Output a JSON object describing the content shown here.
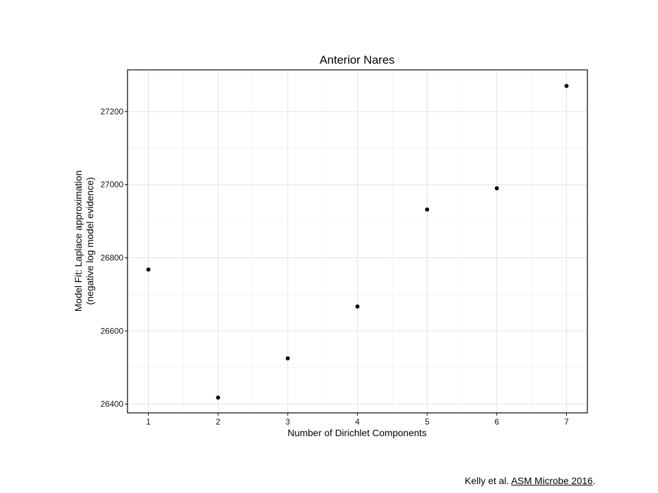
{
  "chart_data": {
    "type": "scatter",
    "title": "Anterior Nares",
    "xlabel": "Number of Dirichlet Components",
    "ylabel_lines": [
      "Model Fit: Laplace approximation",
      "(negative log model evidence)"
    ],
    "x": [
      1,
      2,
      3,
      4,
      5,
      6,
      7
    ],
    "y": [
      26768,
      26418,
      26525,
      26667,
      26932,
      26990,
      27270
    ],
    "xlim": [
      0.7,
      7.3
    ],
    "ylim": [
      26376,
      27314
    ],
    "xticks": [
      1,
      2,
      3,
      4,
      5,
      6,
      7
    ],
    "yticks": [
      26400,
      26600,
      26800,
      27000,
      27200
    ],
    "grid": true,
    "point_color": "#000000"
  },
  "citation": {
    "prefix": "Kelly et al. ",
    "link_text": "ASM Microbe 2016",
    "suffix": "."
  }
}
